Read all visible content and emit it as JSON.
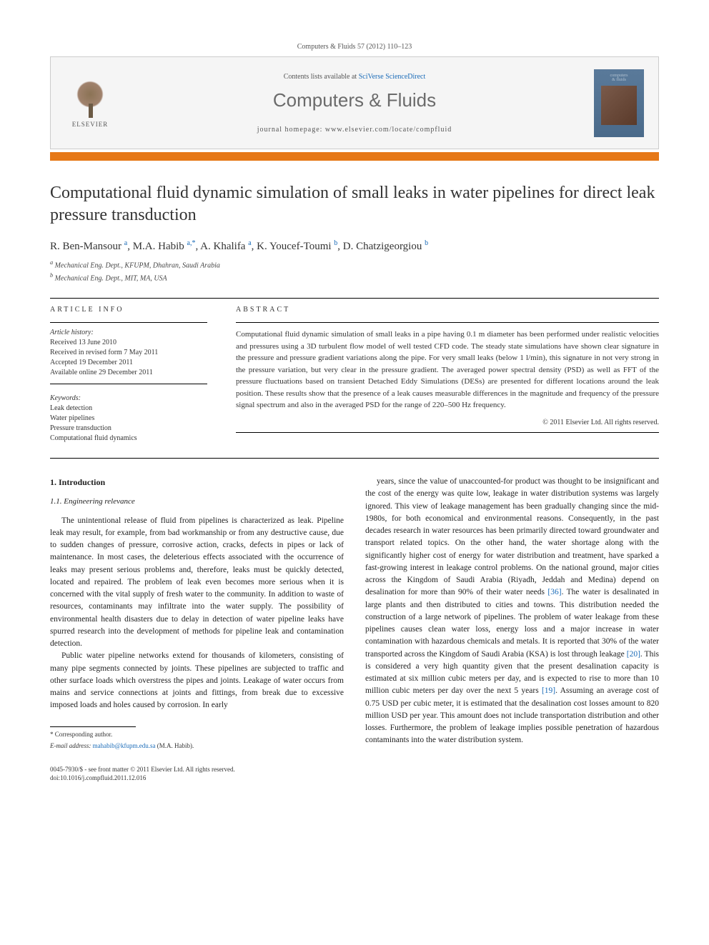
{
  "header": {
    "citation": "Computers & Fluids 57 (2012) 110–123",
    "contents_avail": "Contents lists available at",
    "contents_link": "SciVerse ScienceDirect",
    "journal_name": "Computers & Fluids",
    "homepage_label": "journal homepage: www.elsevier.com/locate/compfluid",
    "publisher": "ELSEVIER",
    "cover_text1": "computers",
    "cover_text2": "& fluids"
  },
  "title": "Computational fluid dynamic simulation of small leaks in water pipelines for direct leak pressure transduction",
  "authors_html": "R. Ben-Mansour <sup>a</sup>, M.A. Habib <sup>a,*</sup>, A. Khalifa <sup>a</sup>, K. Youcef-Toumi <sup>b</sup>, D. Chatzigeorgiou <sup>b</sup>",
  "affiliations": [
    "Mechanical Eng. Dept., KFUPM, Dhahran, Saudi Arabia",
    "Mechanical Eng. Dept., MIT, MA, USA"
  ],
  "aff_sup": [
    "a",
    "b"
  ],
  "article_info": {
    "heading": "ARTICLE INFO",
    "history_label": "Article history:",
    "history": [
      "Received 13 June 2010",
      "Received in revised form 7 May 2011",
      "Accepted 19 December 2011",
      "Available online 29 December 2011"
    ],
    "keywords_label": "Keywords:",
    "keywords": [
      "Leak detection",
      "Water pipelines",
      "Pressure transduction",
      "Computational fluid dynamics"
    ]
  },
  "abstract": {
    "heading": "ABSTRACT",
    "text": "Computational fluid dynamic simulation of small leaks in a pipe having 0.1 m diameter has been performed under realistic velocities and pressures using a 3D turbulent flow model of well tested CFD code. The steady state simulations have shown clear signature in the pressure and pressure gradient variations along the pipe. For very small leaks (below 1 l/min), this signature in not very strong in the pressure variation, but very clear in the pressure gradient. The averaged power spectral density (PSD) as well as FFT of the pressure fluctuations based on transient Detached Eddy Simulations (DESs) are presented for different locations around the leak position. These results show that the presence of a leak causes measurable differences in the magnitude and frequency of the pressure signal spectrum and also in the averaged PSD for the range of 220–500 Hz frequency.",
    "copyright": "© 2011 Elsevier Ltd. All rights reserved."
  },
  "body": {
    "section1": "1. Introduction",
    "subsection11": "1.1. Engineering relevance",
    "col1_p1": "The unintentional release of fluid from pipelines is characterized as leak. Pipeline leak may result, for example, from bad workmanship or from any destructive cause, due to sudden changes of pressure, corrosive action, cracks, defects in pipes or lack of maintenance. In most cases, the deleterious effects associated with the occurrence of leaks may present serious problems and, therefore, leaks must be quickly detected, located and repaired. The problem of leak even becomes more serious when it is concerned with the vital supply of fresh water to the community. In addition to waste of resources, contaminants may infiltrate into the water supply. The possibility of environmental health disasters due to delay in detection of water pipeline leaks have spurred research into the development of methods for pipeline leak and contamination detection.",
    "col1_p2": "Public water pipeline networks extend for thousands of kilometers, consisting of many pipe segments connected by joints. These pipelines are subjected to traffic and other surface loads which overstress the pipes and joints. Leakage of water occurs from mains and service connections at joints and fittings, from break due to excessive imposed loads and holes caused by corrosion. In early",
    "col2_p1": "years, since the value of unaccounted-for product was thought to be insignificant and the cost of the energy was quite low, leakage in water distribution systems was largely ignored. This view of leakage management has been gradually changing since the mid-1980s, for both economical and environmental reasons. Consequently, in the past decades research in water resources has been primarily directed toward groundwater and transport related topics. On the other hand, the water shortage along with the significantly higher cost of energy for water distribution and treatment, have sparked a fast-growing interest in leakage control problems. On the national ground, major cities across the Kingdom of Saudi Arabia (Riyadh, Jeddah and Medina) depend on desalination for more than 90% of their water needs [36]. The water is desalinated in large plants and then distributed to cities and towns. This distribution needed the construction of a large network of pipelines. The problem of water leakage from these pipelines causes clean water loss, energy loss and a major increase in water contamination with hazardous chemicals and metals. It is reported that 30% of the water transported across the Kingdom of Saudi Arabia (KSA) is lost through leakage [20]. This is considered a very high quantity given that the present desalination capacity is estimated at six million cubic meters per day, and is expected to rise to more than 10 million cubic meters per day over the next 5 years [19]. Assuming an average cost of 0.75 USD per cubic meter, it is estimated that the desalination cost losses amount to 820 million USD per year. This amount does not include transportation distribution and other losses. Furthermore, the problem of leakage implies possible penetration of hazardous contaminants into the water distribution system."
  },
  "footnote": {
    "corr": "* Corresponding author.",
    "email_label": "E-mail address:",
    "email": "mahabib@kfupm.edu.sa",
    "email_suffix": "(M.A. Habib)."
  },
  "footer": {
    "line1": "0045-7930/$ - see front matter © 2011 Elsevier Ltd. All rights reserved.",
    "line2": "doi:10.1016/j.compfluid.2011.12.016"
  },
  "refs": {
    "r36": "[36]",
    "r20": "[20]",
    "r19": "[19]"
  }
}
